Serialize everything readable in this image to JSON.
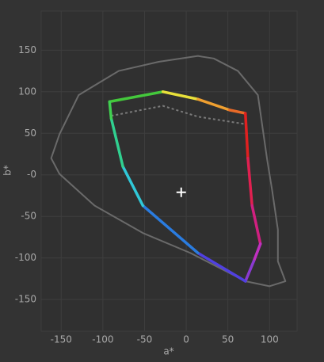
{
  "chart_data": {
    "type": "line",
    "x_label": "a*",
    "y_label": "b*",
    "xlim": [
      -174,
      133
    ],
    "ylim": [
      -188,
      197
    ],
    "xticks": [
      -150,
      -100,
      -50,
      0,
      50,
      100
    ],
    "yticks": [
      -150,
      -100,
      -50,
      {
        "value": 0,
        "label": "-0"
      },
      50,
      100,
      150
    ],
    "grid": true,
    "series": [
      {
        "color": "#6a6a6a",
        "style": "solid",
        "closed": true,
        "x": [
          14,
          33,
          62,
          86,
          97,
          103,
          110,
          110,
          119,
          100,
          71,
          5,
          -52,
          -110,
          -152,
          -162,
          -152,
          -129,
          -81,
          -33
        ],
        "y": [
          143,
          140,
          125,
          96,
          19,
          -18,
          -66,
          -104,
          -128,
          -134,
          -128,
          -94,
          -70,
          -37,
          1,
          20,
          49,
          96,
          125,
          136
        ]
      },
      {
        "color": "#7a7a7a",
        "style": "dotted",
        "closed": false,
        "x": [
          -90,
          -28,
          14,
          71
        ],
        "y": [
          71,
          83,
          70,
          61
        ]
      },
      {
        "style": "gradient",
        "closed": true,
        "x": [
          -92,
          -28,
          14,
          52,
          71,
          74,
          79,
          89,
          81,
          71,
          14,
          -52,
          -76,
          -90
        ],
        "y": [
          88,
          100,
          91,
          78,
          74,
          20,
          -37,
          -83,
          -104,
          -128,
          -94,
          -37,
          10,
          68
        ],
        "colors": [
          "#44c83c",
          "#e8e03a",
          "#f0a030",
          "#e86a28",
          "#e02020",
          "#e02050",
          "#d02080",
          "#c030c0",
          "#8a3ad0",
          "#5040e0",
          "#2a7ce0",
          "#30c8d8",
          "#30d090",
          "#40d050"
        ]
      },
      {
        "style": "marker",
        "marker": "plus",
        "color": "#ffffff",
        "x": [
          -6
        ],
        "y": [
          -21
        ]
      }
    ]
  }
}
